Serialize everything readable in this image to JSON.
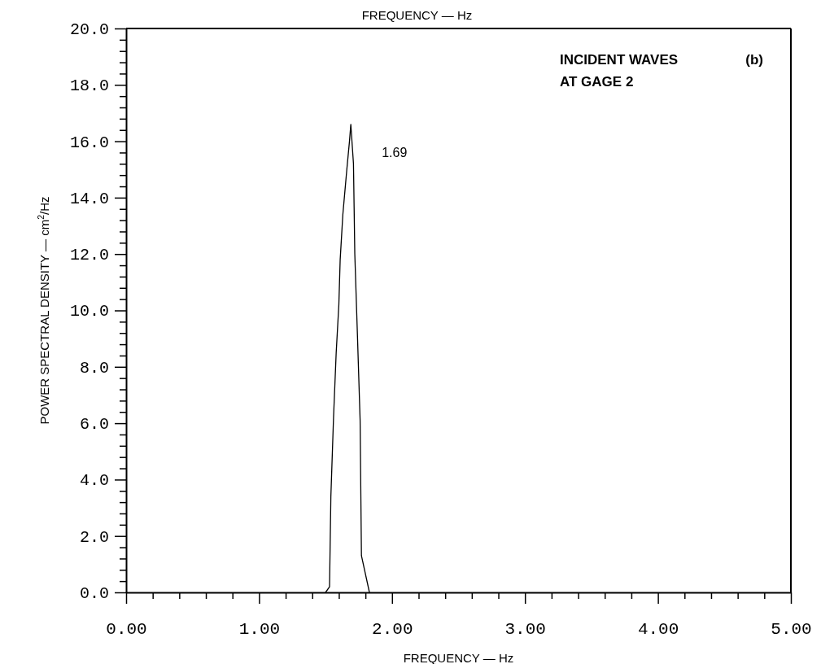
{
  "chart_data": {
    "type": "line",
    "xlabel": "FREQUENCY — Hz",
    "ylabel": "POWER SPECTRAL DENSITY — cm$^{2}$/Hz",
    "annotations": [
      "FREQUENCY — Hz",
      "INCIDENT WAVES",
      "AT GAGE 2",
      "(b)",
      {
        "text": "1.69",
        "x": 1.69,
        "y": 16.6
      }
    ],
    "series": [
      {
        "color": "#000000",
        "x": [
          1.5,
          1.53,
          1.54,
          1.56,
          1.58,
          1.6,
          1.61,
          1.63,
          1.66,
          1.68,
          1.69,
          1.71,
          1.72,
          1.74,
          1.76,
          1.77,
          1.83
        ],
        "values": [
          0,
          0.2,
          3.4,
          6.2,
          8.5,
          10.2,
          11.8,
          13.4,
          15.0,
          16.0,
          16.6,
          15.2,
          12.0,
          9.1,
          6.1,
          1.3,
          0
        ]
      }
    ],
    "xlim": [
      0,
      5
    ],
    "ylim": [
      0,
      20
    ],
    "xticks": [
      {
        "value": 0,
        "label": "0.00"
      },
      {
        "value": 0.2,
        "label": null
      },
      {
        "value": 0.4,
        "label": null
      },
      {
        "value": 0.6,
        "label": null
      },
      {
        "value": 0.8,
        "label": null
      },
      {
        "value": 1,
        "label": "1.00"
      },
      {
        "value": 1.2,
        "label": null
      },
      {
        "value": 1.4,
        "label": null
      },
      {
        "value": 1.6,
        "label": null
      },
      {
        "value": 1.8,
        "label": null
      },
      {
        "value": 2,
        "label": "2.00"
      },
      {
        "value": 2.2,
        "label": null
      },
      {
        "value": 2.4,
        "label": null
      },
      {
        "value": 2.6,
        "label": null
      },
      {
        "value": 2.8,
        "label": null
      },
      {
        "value": 3,
        "label": "3.00"
      },
      {
        "value": 3.2,
        "label": null
      },
      {
        "value": 3.4,
        "label": null
      },
      {
        "value": 3.6,
        "label": null
      },
      {
        "value": 3.8,
        "label": null
      },
      {
        "value": 4,
        "label": "4.00"
      },
      {
        "value": 4.2,
        "label": null
      },
      {
        "value": 4.4,
        "label": null
      },
      {
        "value": 4.6,
        "label": null
      },
      {
        "value": 4.8,
        "label": null
      },
      {
        "value": 5,
        "label": "5.00"
      }
    ],
    "yticks": [
      {
        "value": 0,
        "label": "0.0"
      },
      {
        "value": 0.4,
        "label": null
      },
      {
        "value": 0.8,
        "label": null
      },
      {
        "value": 1.2,
        "label": null
      },
      {
        "value": 1.6,
        "label": null
      },
      {
        "value": 2,
        "label": "2.0"
      },
      {
        "value": 2.4,
        "label": null
      },
      {
        "value": 2.8,
        "label": null
      },
      {
        "value": 3.2,
        "label": null
      },
      {
        "value": 3.6,
        "label": null
      },
      {
        "value": 4,
        "label": "4.0"
      },
      {
        "value": 4.4,
        "label": null
      },
      {
        "value": 4.8,
        "label": null
      },
      {
        "value": 5.2,
        "label": null
      },
      {
        "value": 5.6,
        "label": null
      },
      {
        "value": 6,
        "label": "6.0"
      },
      {
        "value": 6.4,
        "label": null
      },
      {
        "value": 6.8,
        "label": null
      },
      {
        "value": 7.2,
        "label": null
      },
      {
        "value": 7.6,
        "label": null
      },
      {
        "value": 8,
        "label": "8.0"
      },
      {
        "value": 8.4,
        "label": null
      },
      {
        "value": 8.8,
        "label": null
      },
      {
        "value": 9.2,
        "label": null
      },
      {
        "value": 9.6,
        "label": null
      },
      {
        "value": 10,
        "label": "10.0"
      },
      {
        "value": 10.4,
        "label": null
      },
      {
        "value": 10.8,
        "label": null
      },
      {
        "value": 11.2,
        "label": null
      },
      {
        "value": 11.6,
        "label": null
      },
      {
        "value": 12,
        "label": "12.0"
      },
      {
        "value": 12.4,
        "label": null
      },
      {
        "value": 12.8,
        "label": null
      },
      {
        "value": 13.2,
        "label": null
      },
      {
        "value": 13.6,
        "label": null
      },
      {
        "value": 14,
        "label": "14.0"
      },
      {
        "value": 14.4,
        "label": null
      },
      {
        "value": 14.8,
        "label": null
      },
      {
        "value": 15.2,
        "label": null
      },
      {
        "value": 15.6,
        "label": null
      },
      {
        "value": 16,
        "label": "16.0"
      },
      {
        "value": 16.4,
        "label": null
      },
      {
        "value": 16.8,
        "label": null
      },
      {
        "value": 17.2,
        "label": null
      },
      {
        "value": 17.6,
        "label": null
      },
      {
        "value": 18,
        "label": "18.0"
      },
      {
        "value": 18.4,
        "label": null
      },
      {
        "value": 18.8,
        "label": null
      },
      {
        "value": 19.2,
        "label": null
      },
      {
        "value": 19.6,
        "label": null
      },
      {
        "value": 20,
        "label": "20.0"
      }
    ],
    "line_style": "solid"
  }
}
